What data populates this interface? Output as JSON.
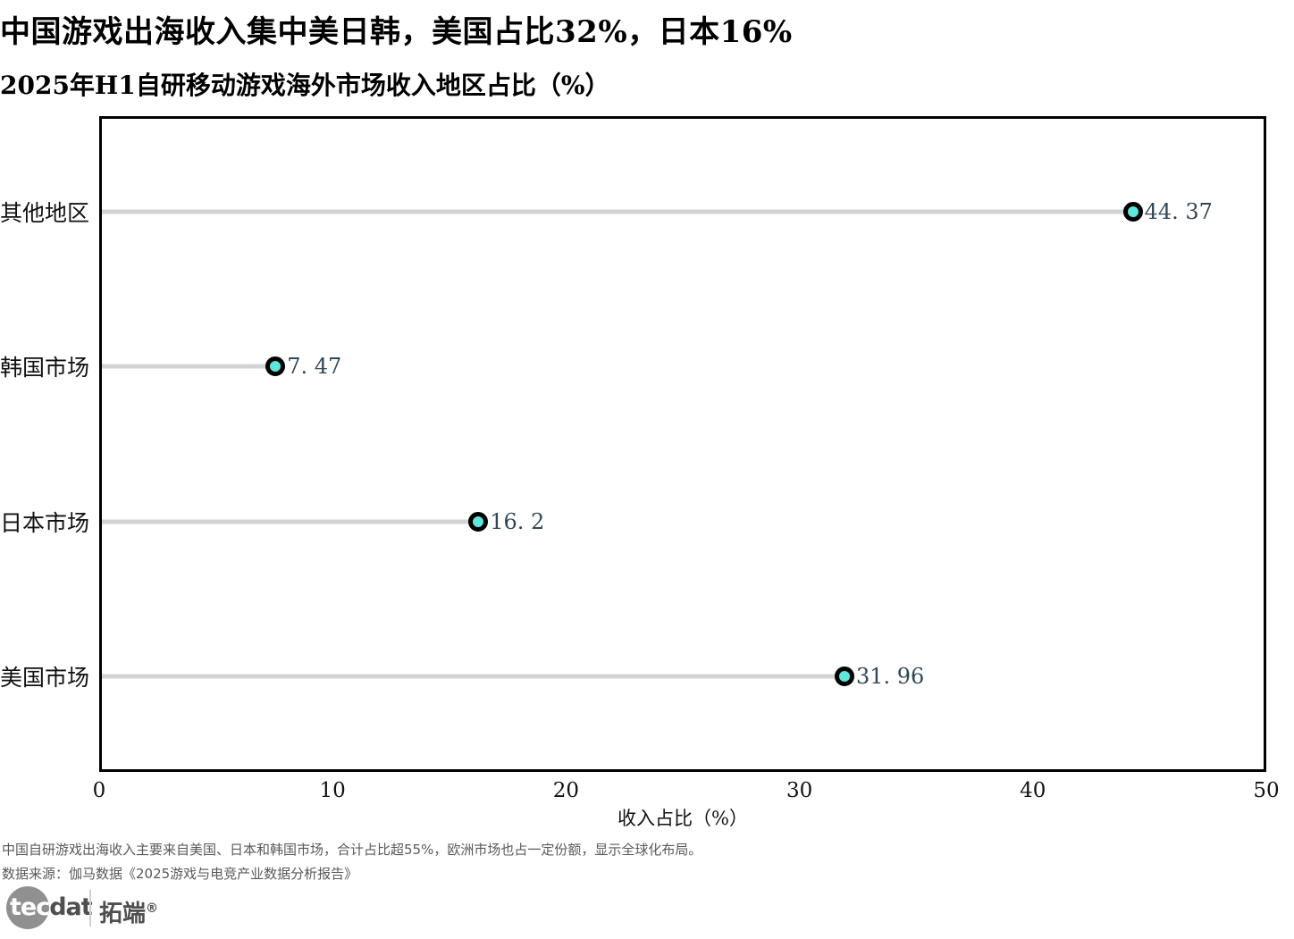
{
  "header": {
    "title": "中国游戏出海收入集中美日韩，美国占比32%，日本16%",
    "subtitle": "2025年H1自研移动游戏海外市场收入地区占比（%）"
  },
  "chart_data": {
    "type": "bar",
    "variant": "horizontal-lollipop",
    "title": "2025年H1自研移动游戏海外市场收入地区占比（%）",
    "categories": [
      "其他地区",
      "韩国市场",
      "日本市场",
      "美国市场"
    ],
    "values": [
      44.37,
      7.47,
      16.2,
      31.96
    ],
    "value_labels": [
      "44. 37",
      "7. 47",
      "16. 2",
      "31. 96"
    ],
    "xlabel": "收入占比（%）",
    "ylabel": "",
    "xlim": [
      0,
      50
    ],
    "xticks": [
      "0",
      "10",
      "20",
      "30",
      "40",
      "50"
    ],
    "grid": false,
    "legend": false,
    "colors": {
      "dot_fill": "#5ce8dc",
      "dot_edge": "#000000",
      "stem": "#d3d3d3",
      "value_label": "#2f4858",
      "frame": "#000000"
    }
  },
  "footer": {
    "note": "中国自研游戏出海收入主要来自美国、日本和韩国市场，合计占比超55%，欧洲市场也占一定份额，显示全球化布局。",
    "source": "数据来源：伽马数据《2025游戏与电竞产业数据分析报告》"
  },
  "logo": {
    "circle_text": "tec",
    "rest_text": "dat",
    "cn_text": "拓端",
    "reg_mark": "®"
  }
}
